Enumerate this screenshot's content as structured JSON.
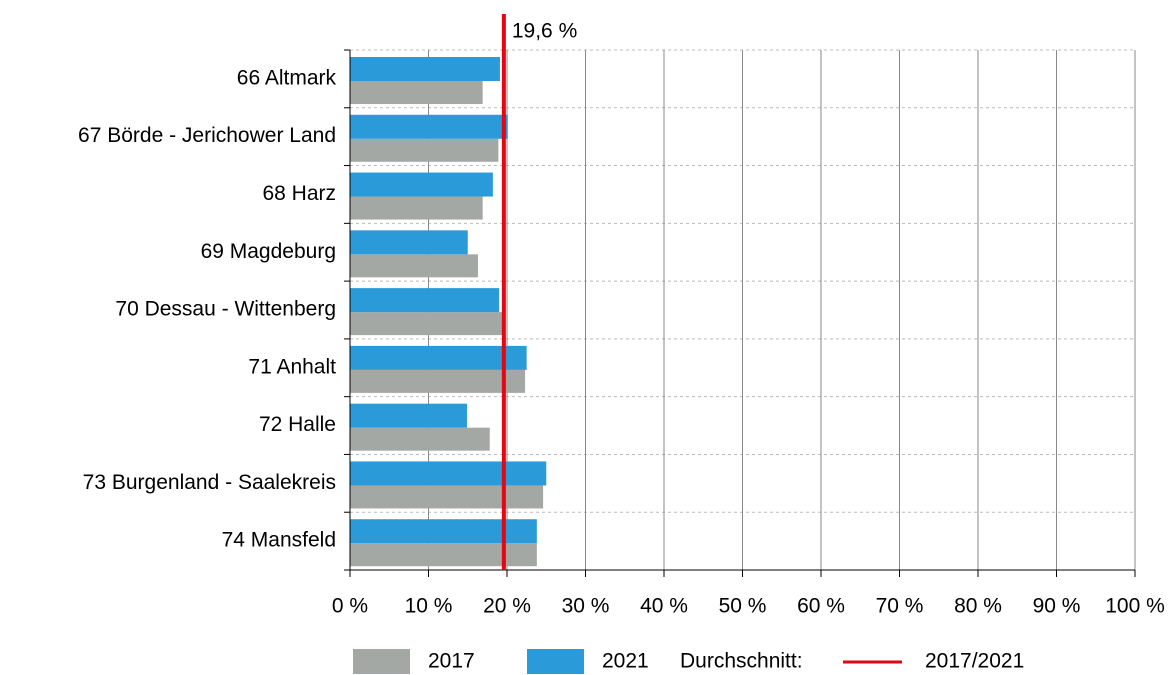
{
  "chart_data": {
    "type": "hbar",
    "categories": [
      "66 Altmark",
      "67 Börde - Jerichower Land",
      "68 Harz",
      "69 Magdeburg",
      "70 Dessau - Wittenberg",
      "71 Anhalt",
      "72 Halle",
      "73 Burgenland - Saalekreis",
      "74 Mansfeld"
    ],
    "series": [
      {
        "name": "2017",
        "color": "#a3a8a4",
        "values": [
          16.9,
          18.9,
          16.9,
          16.3,
          19.4,
          22.3,
          17.8,
          24.6,
          23.8
        ]
      },
      {
        "name": "2021",
        "color": "#2b9ad8",
        "values": [
          19.1,
          20.1,
          18.2,
          15.0,
          19.0,
          22.5,
          14.9,
          25.0,
          23.8
        ]
      }
    ],
    "xlim": [
      0,
      100
    ],
    "xticks": [
      {
        "value": 0,
        "label": "0 %"
      },
      {
        "value": 10,
        "label": "10 %"
      },
      {
        "value": 20,
        "label": "20 %"
      },
      {
        "value": 30,
        "label": "30 %"
      },
      {
        "value": 40,
        "label": "40 %"
      },
      {
        "value": 50,
        "label": "50 %"
      },
      {
        "value": 60,
        "label": "60 %"
      },
      {
        "value": 70,
        "label": "70 %"
      },
      {
        "value": 80,
        "label": "80 %"
      },
      {
        "value": 90,
        "label": "90 %"
      },
      {
        "value": 100,
        "label": "100 %"
      }
    ],
    "grid": true,
    "reference_line": {
      "value": 19.6,
      "label": "19,6 %",
      "legend_prefix": "Durchschnitt:",
      "legend": "2017/2021",
      "color": "#e30613"
    }
  }
}
